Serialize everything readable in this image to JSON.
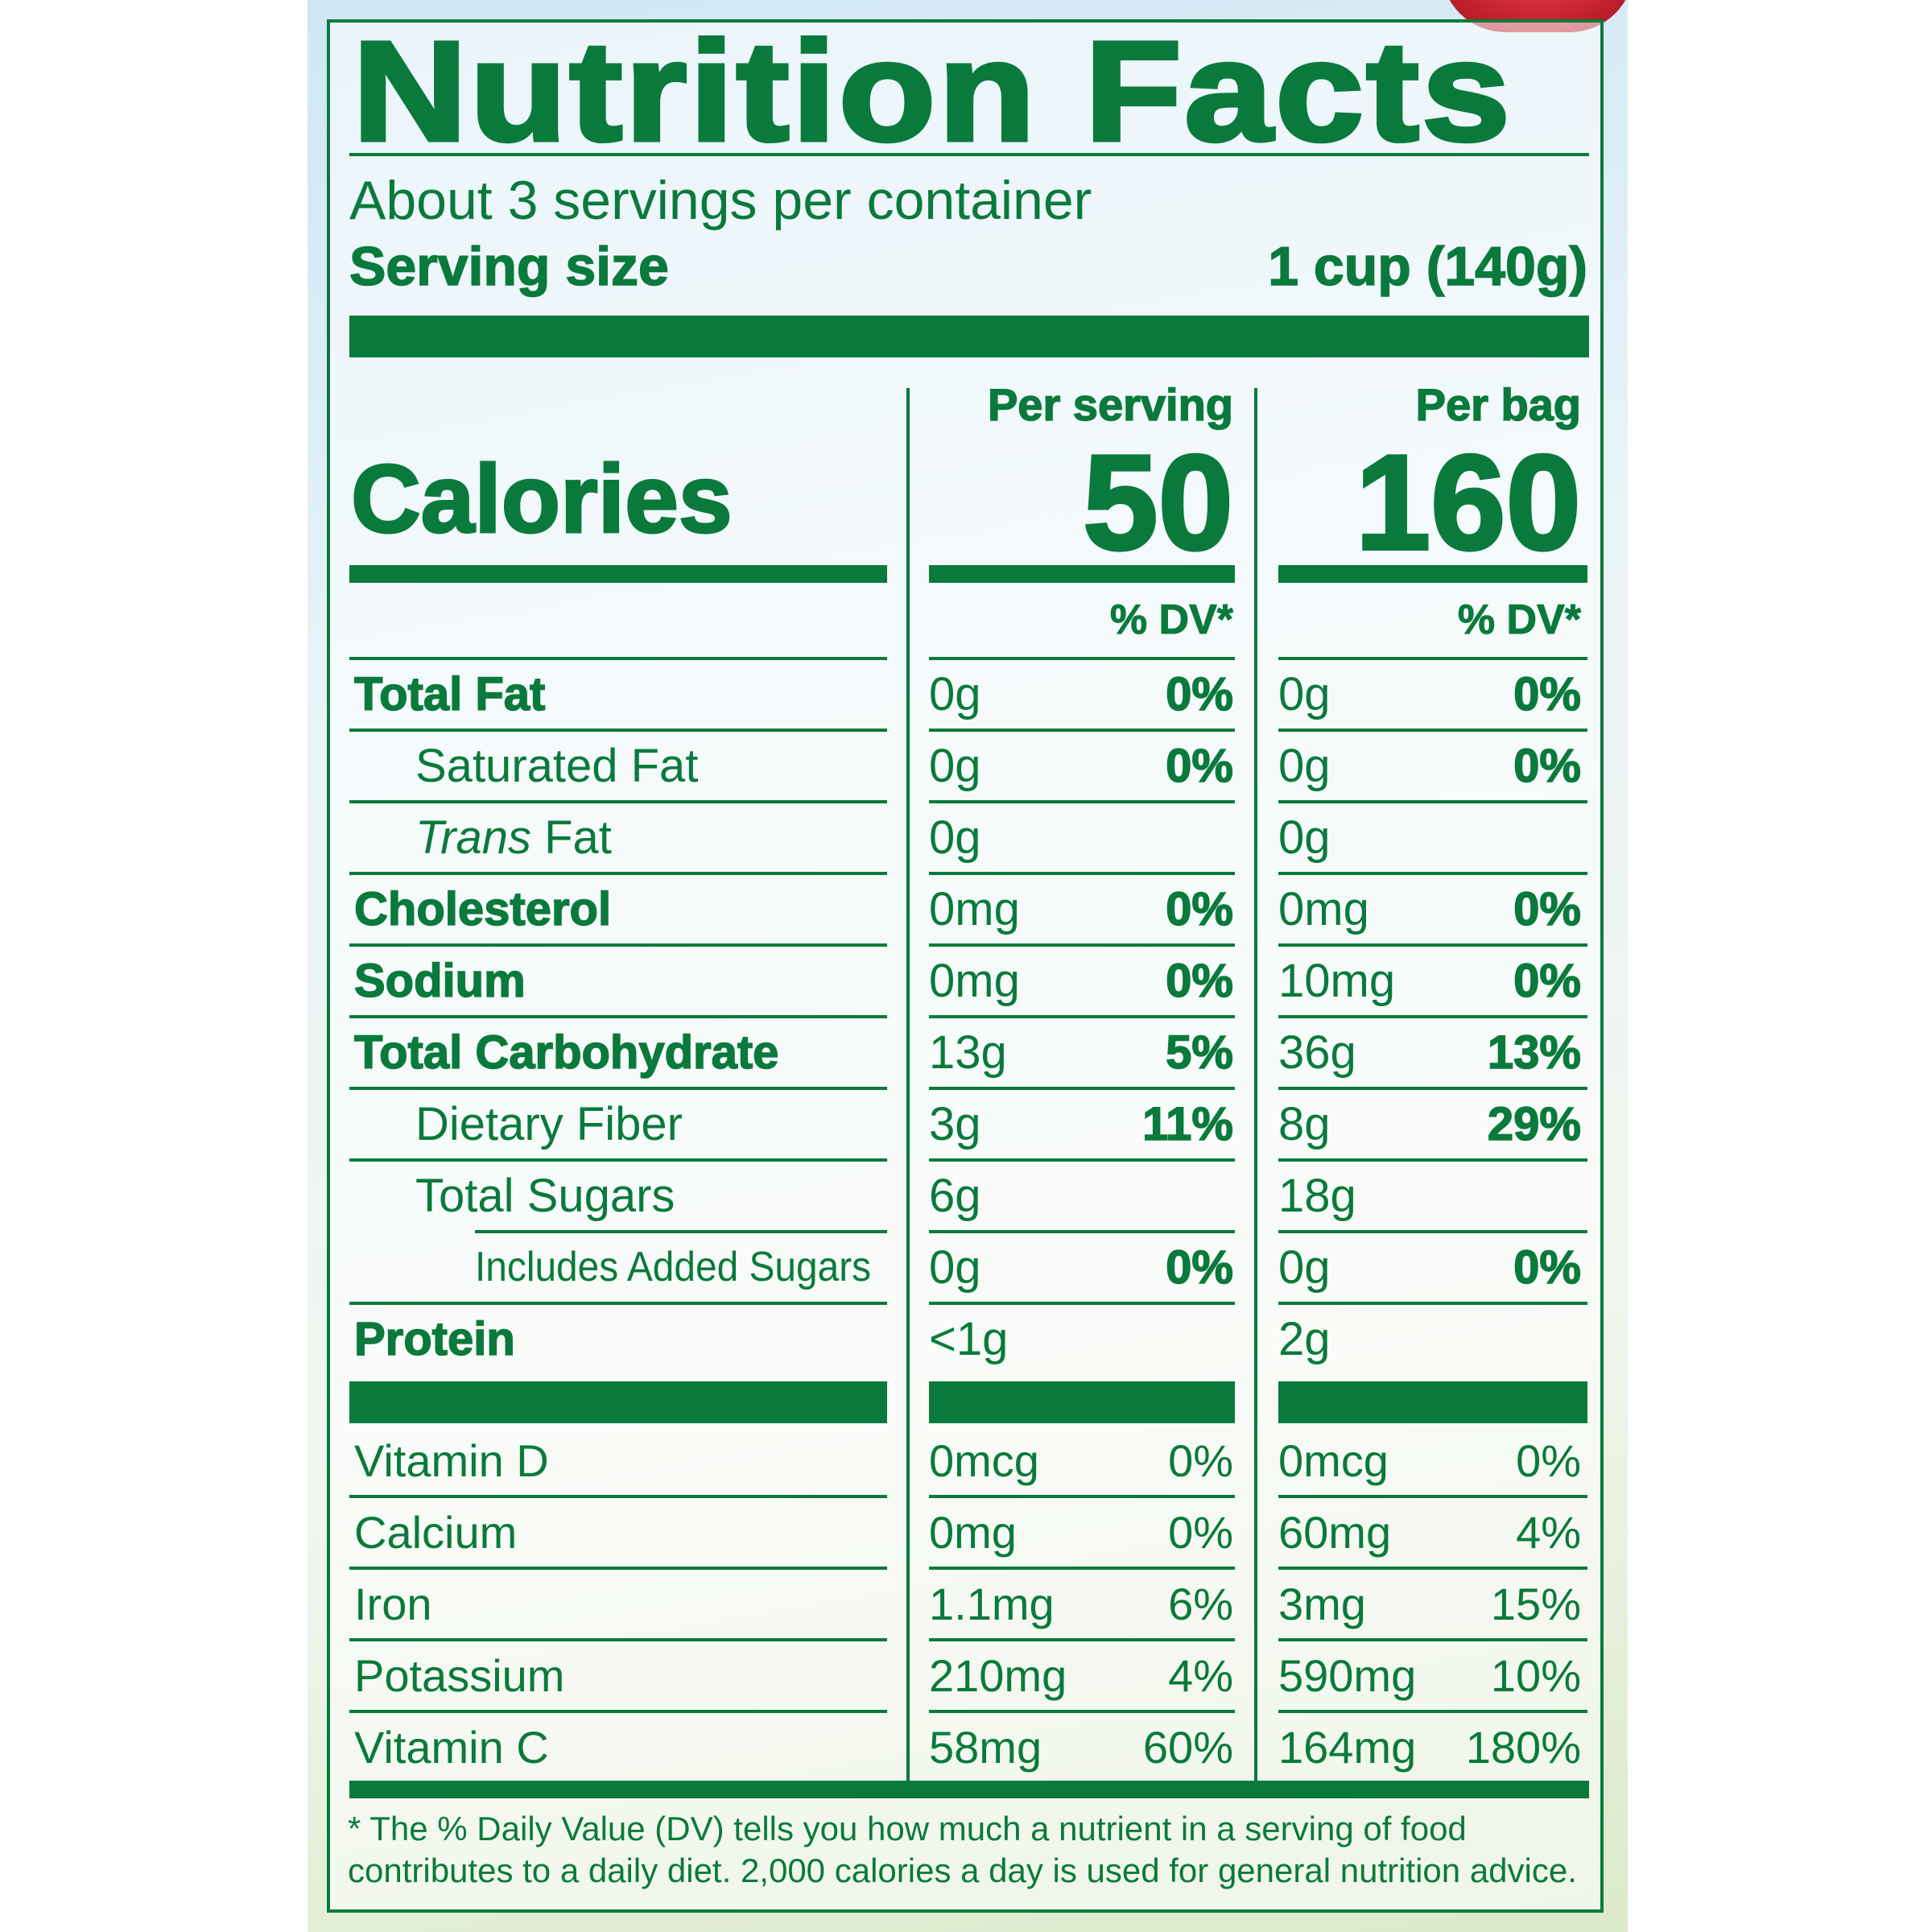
{
  "title": "Nutrition Facts",
  "servings_per_container": "About 3 servings per container",
  "serving_size_label": "Serving size",
  "serving_size_value": "1 cup (140g)",
  "column_per_serving": "Per serving",
  "column_per_bag": "Per bag",
  "calories_label": "Calories",
  "calories_per_serving": "50",
  "calories_per_bag": "160",
  "dv_header": "% DV*",
  "nutrients": [
    {
      "label": "Total Fat",
      "serving_amount": "0g",
      "serving_dv": "0%",
      "bag_amount": "0g",
      "bag_dv": "0%"
    },
    {
      "label": "Saturated Fat",
      "serving_amount": "0g",
      "serving_dv": "0%",
      "bag_amount": "0g",
      "bag_dv": "0%"
    },
    {
      "label_italic": "Trans",
      "label_rest": " Fat",
      "serving_amount": "0g",
      "bag_amount": "0g"
    },
    {
      "label": "Cholesterol",
      "serving_amount": "0mg",
      "serving_dv": "0%",
      "bag_amount": "0mg",
      "bag_dv": "0%"
    },
    {
      "label": "Sodium",
      "serving_amount": "0mg",
      "serving_dv": "0%",
      "bag_amount": "10mg",
      "bag_dv": "0%"
    },
    {
      "label": "Total Carbohydrate",
      "serving_amount": "13g",
      "serving_dv": "5%",
      "bag_amount": "36g",
      "bag_dv": "13%"
    },
    {
      "label": "Dietary Fiber",
      "serving_amount": "3g",
      "serving_dv": "11%",
      "bag_amount": "8g",
      "bag_dv": "29%"
    },
    {
      "label": "Total Sugars",
      "serving_amount": "6g",
      "bag_amount": "18g"
    },
    {
      "label": "Includes Added Sugars",
      "serving_amount": "0g",
      "serving_dv": "0%",
      "bag_amount": "0g",
      "bag_dv": "0%"
    },
    {
      "label": "Protein",
      "serving_amount": "<1g",
      "bag_amount": "2g"
    }
  ],
  "vitamins": [
    {
      "label": "Vitamin D",
      "serving_amount": "0mcg",
      "serving_dv": "0%",
      "bag_amount": "0mcg",
      "bag_dv": "0%"
    },
    {
      "label": "Calcium",
      "serving_amount": "0mg",
      "serving_dv": "0%",
      "bag_amount": "60mg",
      "bag_dv": "4%"
    },
    {
      "label": "Iron",
      "serving_amount": "1.1mg",
      "serving_dv": "6%",
      "bag_amount": "3mg",
      "bag_dv": "15%"
    },
    {
      "label": "Potassium",
      "serving_amount": "210mg",
      "serving_dv": "4%",
      "bag_amount": "590mg",
      "bag_dv": "10%"
    },
    {
      "label": "Vitamin C",
      "serving_amount": "58mg",
      "serving_dv": "60%",
      "bag_amount": "164mg",
      "bag_dv": "180%"
    }
  ],
  "footnote": "* The % Daily Value (DV) tells you how much a nutrient in a serving of food contributes to a daily diet. 2,000 calories a day is used for general nutrition advice.",
  "colors": {
    "label_green": "#0a7a3c",
    "berry_red": "#c4222d"
  }
}
